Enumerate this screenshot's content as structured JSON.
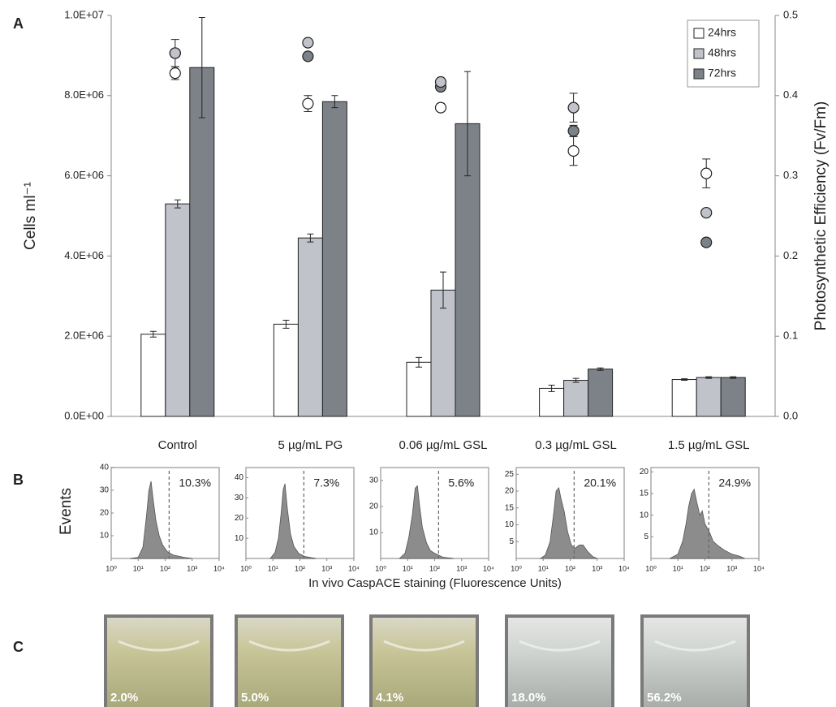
{
  "panel_labels": [
    "A",
    "B",
    "C"
  ],
  "chart_data": [
    {
      "type": "bar",
      "y_label": "Cells ml⁻¹",
      "y2_label": "Photosynthetic Efficiency (Fv/Fm)",
      "categories": [
        "Control",
        "5 µg/mL PG",
        "0.06 µg/mL GSL",
        "0.3 µg/mL GSL",
        "1.5 µg/mL GSL"
      ],
      "ylim": [
        0,
        10000000
      ],
      "yticks": [
        {
          "value": 0,
          "label": "0.0E+00"
        },
        {
          "value": 2000000,
          "label": "2.0E+06"
        },
        {
          "value": 4000000,
          "label": "4.0E+06"
        },
        {
          "value": 6000000,
          "label": "6.0E+06"
        },
        {
          "value": 8000000,
          "label": "8.0E+06"
        },
        {
          "value": 10000000,
          "label": "1.0E+07"
        }
      ],
      "y2lim": [
        0,
        0.5
      ],
      "y2ticks": [
        {
          "value": 0,
          "label": "0.0"
        },
        0.1,
        0.2,
        0.3,
        0.4,
        0.5
      ],
      "legend": "upper right",
      "series": [
        {
          "name": "24hrs",
          "color": "#ffffff",
          "values": [
            2050000,
            2300000,
            1350000,
            700000,
            920000
          ],
          "errors": [
            70000,
            100000,
            120000,
            80000,
            20000
          ],
          "efficiency": {
            "axis": "y2",
            "values": [
              0.428,
              0.39,
              0.385,
              0.331,
              0.303
            ],
            "errors": [
              0.008,
              0.01,
              0.005,
              0.018,
              0.018
            ]
          }
        },
        {
          "name": "48hrs",
          "color": "#c0c3ca",
          "values": [
            5300000,
            4450000,
            3150000,
            900000,
            970000
          ],
          "errors": [
            100000,
            100000,
            450000,
            50000,
            20000
          ],
          "efficiency": {
            "axis": "y2",
            "values": [
              0.453,
              0.466,
              0.417,
              0.385,
              0.254
            ],
            "errors": [
              0.005,
              0.003,
              0.003,
              0.018,
              0.003
            ]
          }
        },
        {
          "name": "72hrs",
          "color": "#7d8288",
          "values": [
            8700000,
            7850000,
            7300000,
            1180000,
            970000
          ],
          "errors": [
            1250000,
            150000,
            1300000,
            30000,
            20000
          ],
          "efficiency": {
            "axis": "y2",
            "values": [
              0.453,
              0.449,
              0.411,
              0.356,
              0.217
            ],
            "errors": [
              0.017,
              0.003,
              0.003,
              0.007,
              0.005
            ]
          }
        }
      ]
    },
    {
      "type": "histogram",
      "xscale": "log",
      "xlim": [
        1,
        10000
      ],
      "xticks": [
        {
          "value": 1,
          "label": "10⁰"
        },
        {
          "value": 10,
          "label": "10¹"
        },
        {
          "value": 100,
          "label": "10²"
        },
        {
          "value": 1000,
          "label": "10³"
        },
        {
          "value": 10000,
          "label": "10⁴"
        }
      ],
      "ylim": [
        0,
        40
      ],
      "yticks": [
        10,
        20,
        30,
        40
      ],
      "color": "#8c8c8c",
      "x": [
        5,
        10,
        15,
        20,
        25,
        30,
        35,
        45,
        60,
        80,
        120,
        200,
        500,
        1000
      ],
      "values": [
        0,
        0.5,
        5,
        18,
        30,
        34,
        27,
        17,
        10,
        6,
        3,
        1.5,
        0.5,
        0
      ],
      "gate": {
        "x": 140,
        "value": 10.3,
        "value_label": "10.3%"
      }
    },
    {
      "type": "histogram",
      "xscale": "log",
      "xlim": [
        1,
        10000
      ],
      "xticks": [
        {
          "value": 1,
          "label": "10⁰"
        },
        {
          "value": 10,
          "label": "10¹"
        },
        {
          "value": 100,
          "label": "10²"
        },
        {
          "value": 1000,
          "label": "10³"
        },
        {
          "value": 10000,
          "label": "10⁴"
        }
      ],
      "ylim": [
        0,
        45
      ],
      "yticks": [
        10,
        20,
        30,
        40
      ],
      "color": "#8c8c8c",
      "x": [
        8,
        12,
        16,
        20,
        24,
        28,
        34,
        45,
        60,
        90,
        150,
        400
      ],
      "values": [
        0,
        3,
        10,
        22,
        34,
        37,
        25,
        12,
        6,
        2.5,
        1,
        0
      ],
      "gate": {
        "x": 140,
        "value": 7.3,
        "value_label": "7.3%"
      }
    },
    {
      "type": "histogram",
      "xscale": "log",
      "xlim": [
        1,
        10000
      ],
      "xticks": [
        {
          "value": 1,
          "label": "10⁰"
        },
        {
          "value": 10,
          "label": "10¹"
        },
        {
          "value": 100,
          "label": "10²"
        },
        {
          "value": 1000,
          "label": "10³"
        },
        {
          "value": 10000,
          "label": "10⁴"
        }
      ],
      "ylim": [
        0,
        35
      ],
      "yticks": [
        10,
        20,
        30
      ],
      "color": "#8c8c8c",
      "x": [
        5,
        8,
        11,
        15,
        19,
        23,
        28,
        35,
        50,
        70,
        100,
        200,
        500
      ],
      "values": [
        0,
        2,
        8,
        17,
        27,
        28,
        20,
        12,
        6,
        3,
        2,
        0.5,
        0
      ],
      "gate": {
        "x": 140,
        "value": 5.6,
        "value_label": "5.6%"
      }
    },
    {
      "type": "histogram",
      "xscale": "log",
      "xlim": [
        1,
        10000
      ],
      "xticks": [
        {
          "value": 1,
          "label": "10⁰"
        },
        {
          "value": 10,
          "label": "10¹"
        },
        {
          "value": 100,
          "label": "10²"
        },
        {
          "value": 1000,
          "label": "10³"
        },
        {
          "value": 10000,
          "label": "10⁴"
        }
      ],
      "ylim": [
        0,
        27
      ],
      "yticks": [
        5,
        10,
        15,
        20,
        25
      ],
      "color": "#8c8c8c",
      "x": [
        8,
        12,
        18,
        25,
        30,
        38,
        45,
        60,
        80,
        110,
        150,
        220,
        300,
        450,
        700,
        1000
      ],
      "values": [
        0,
        1,
        5,
        14,
        20,
        21,
        18,
        14,
        8,
        4,
        3,
        4,
        4,
        2,
        0.5,
        0
      ],
      "gate": {
        "x": 140,
        "value": 20.1,
        "value_label": "20.1%"
      }
    },
    {
      "type": "histogram",
      "xscale": "log",
      "xlim": [
        1,
        10000
      ],
      "xticks": [
        {
          "value": 1,
          "label": "10⁰"
        },
        {
          "value": 10,
          "label": "10¹"
        },
        {
          "value": 100,
          "label": "10²"
        },
        {
          "value": 1000,
          "label": "10³"
        },
        {
          "value": 10000,
          "label": "10⁴"
        }
      ],
      "ylim": [
        0,
        21
      ],
      "yticks": [
        5,
        10,
        15,
        20
      ],
      "color": "#8c8c8c",
      "x": [
        5,
        10,
        15,
        20,
        25,
        32,
        40,
        50,
        65,
        80,
        100,
        150,
        200,
        300,
        500,
        1000,
        2000,
        3000
      ],
      "values": [
        0,
        1,
        4,
        8,
        12,
        15,
        16,
        13,
        10,
        11,
        8,
        6,
        4,
        3,
        2,
        1,
        0.5,
        0
      ],
      "gate": {
        "x": 140,
        "value": 24.9,
        "value_label": "24.9%"
      }
    }
  ],
  "panel_b": {
    "y_label": "Events",
    "x_label": "In vivo CaspACE staining (Fluorescence Units)"
  },
  "panel_c": {
    "photos": [
      {
        "label": "2.0%"
      },
      {
        "label": "5.0%"
      },
      {
        "label": "4.1%"
      },
      {
        "label": "18.0%"
      },
      {
        "label": "56.2%"
      }
    ]
  }
}
